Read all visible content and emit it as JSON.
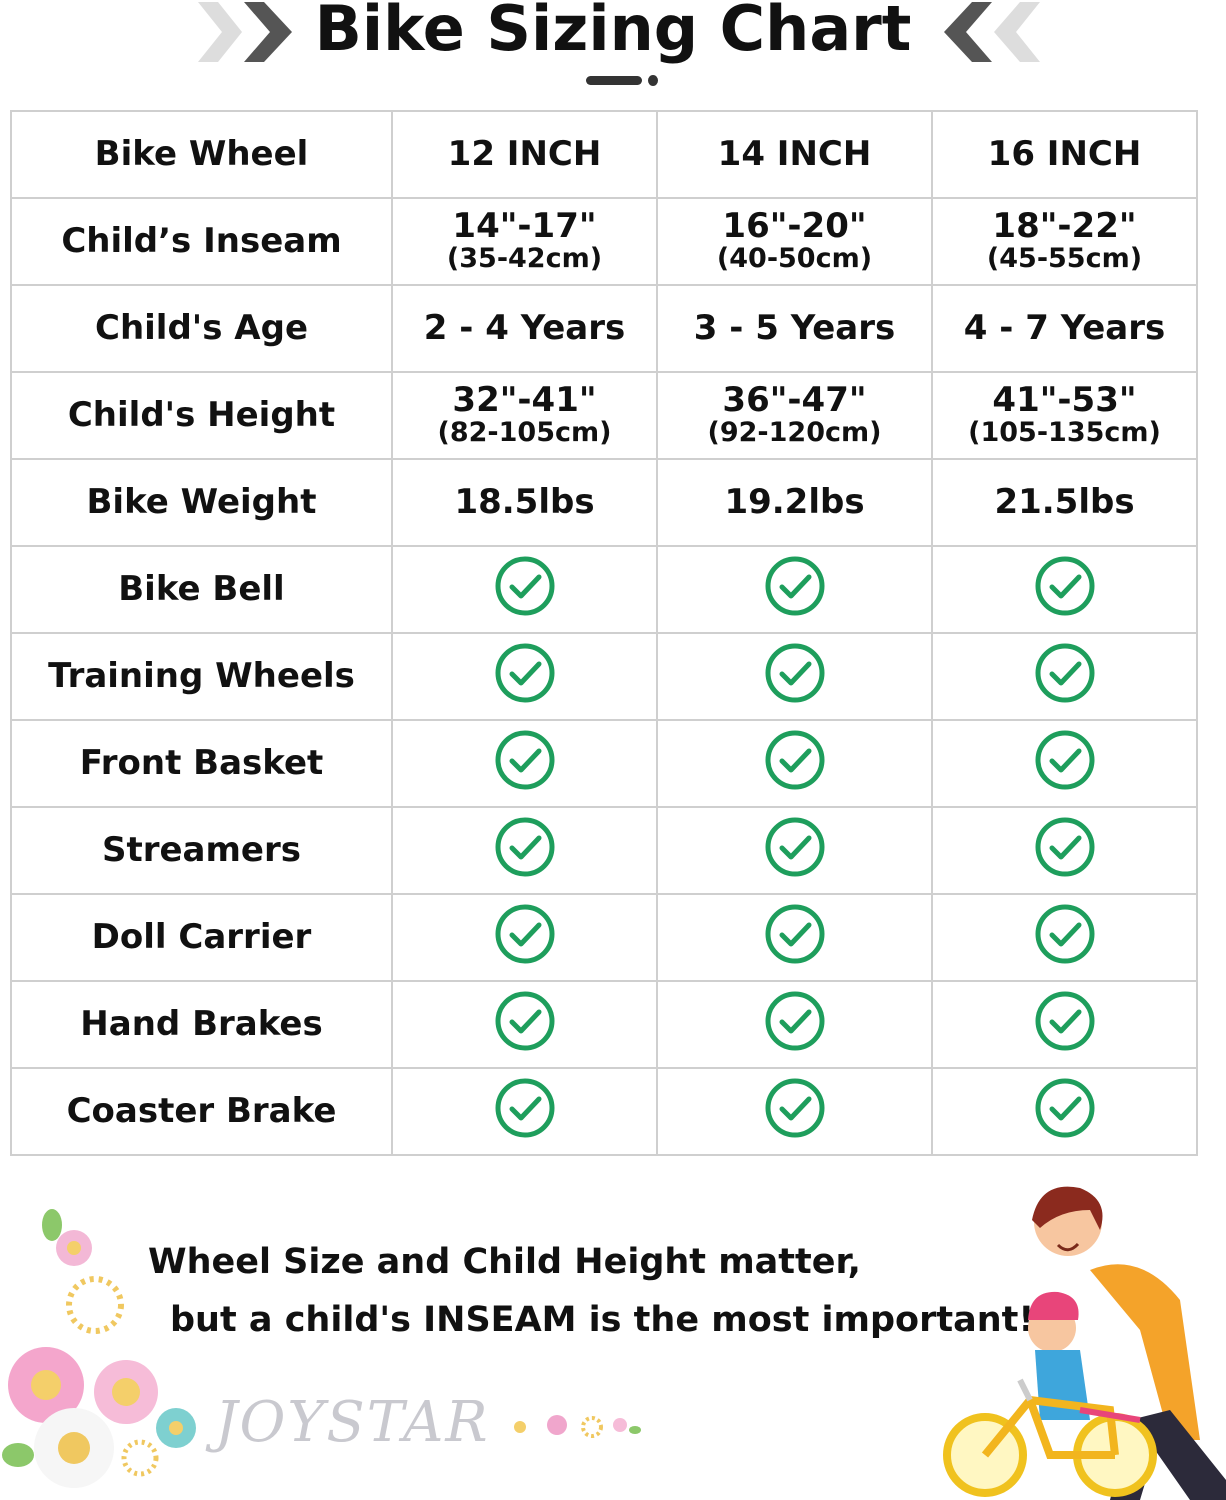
{
  "title": "Bike Sizing Chart",
  "colors": {
    "check": "#1e9e5c",
    "border": "#cfcfcf",
    "chevron_dark": "#555555",
    "chevron_light": "#dddddd"
  },
  "table": {
    "header": {
      "label": "Bike Wheel",
      "columns": [
        "12 INCH",
        "14 INCH",
        "16 INCH"
      ]
    },
    "rows": [
      {
        "label": "Child’s Inseam",
        "cells": [
          {
            "main": "14\"-17\"",
            "sub": "(35-42cm)"
          },
          {
            "main": "16\"-20\"",
            "sub": "(40-50cm)"
          },
          {
            "main": "18\"-22\"",
            "sub": "(45-55cm)"
          }
        ]
      },
      {
        "label": "Child's Age",
        "cells": [
          {
            "main": "2 - 4 Years"
          },
          {
            "main": "3 - 5 Years"
          },
          {
            "main": "4 - 7 Years"
          }
        ]
      },
      {
        "label": "Child's Height",
        "cells": [
          {
            "main": "32\"-41\"",
            "sub": "(82-105cm)"
          },
          {
            "main": "36\"-47\"",
            "sub": "(92-120cm)"
          },
          {
            "main": "41\"-53\"",
            "sub": "(105-135cm)"
          }
        ]
      },
      {
        "label": "Bike Weight",
        "cells": [
          {
            "main": "18.5lbs"
          },
          {
            "main": "19.2lbs"
          },
          {
            "main": "21.5lbs"
          }
        ]
      },
      {
        "label": "Bike Bell",
        "check": true
      },
      {
        "label": "Training Wheels",
        "check": true
      },
      {
        "label": "Front Basket",
        "check": true
      },
      {
        "label": "Streamers",
        "check": true
      },
      {
        "label": "Doll Carrier",
        "check": true
      },
      {
        "label": "Hand Brakes",
        "check": true
      },
      {
        "label": "Coaster Brake",
        "check": true
      }
    ]
  },
  "note": {
    "line1": "Wheel Size and Child Height matter,",
    "line2": "but a child's INSEAM is the most important!"
  },
  "logo": "JOYSTAR"
}
